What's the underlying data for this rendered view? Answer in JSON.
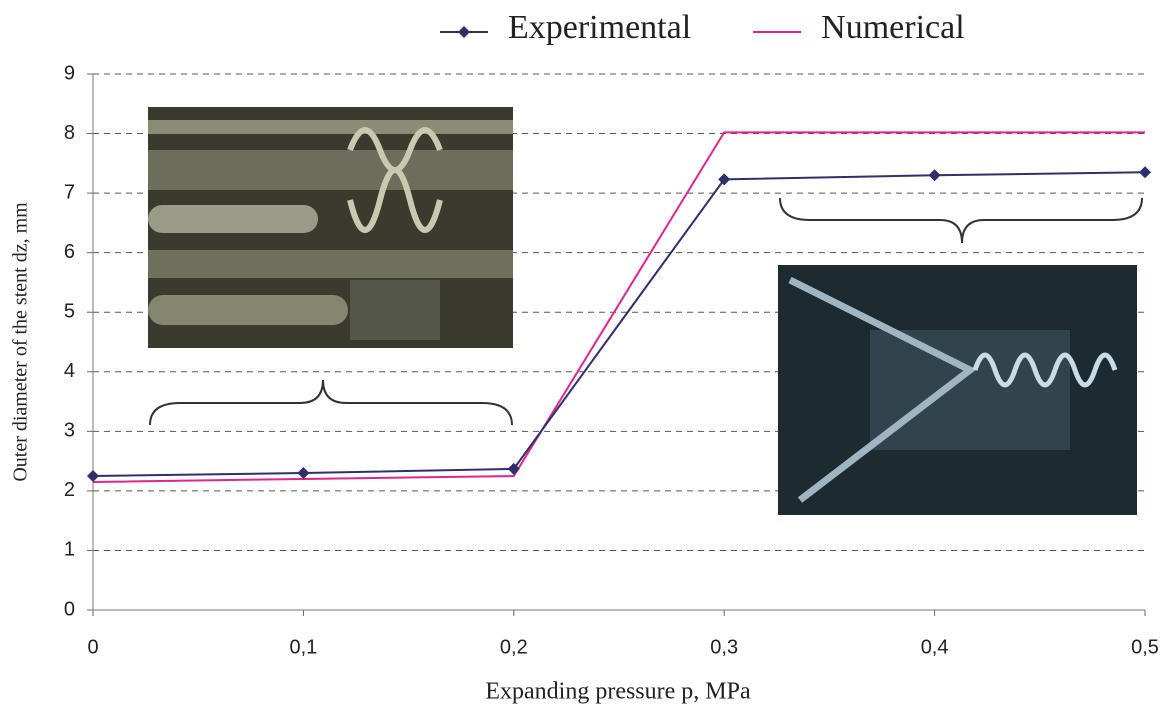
{
  "chart_data": {
    "type": "line",
    "xlabel": "Expanding pressure p, MPa",
    "ylabel": "Outer diameter of the stent dz, mm",
    "x": [
      0,
      0.1,
      0.2,
      0.3,
      0.4,
      0.5
    ],
    "series": [
      {
        "name": "Experimental",
        "color": "#2f2f6b",
        "marker": "diamond",
        "values": [
          2.25,
          2.3,
          2.37,
          7.23,
          7.3,
          7.35
        ]
      },
      {
        "name": "Numerical",
        "color": "#e0258c",
        "marker": "none",
        "values": [
          2.15,
          2.2,
          2.25,
          8.02,
          8.02,
          8.02
        ]
      }
    ],
    "xlim": [
      0,
      0.5
    ],
    "xticks": [
      0,
      {
        "value": 0.1,
        "label": "0,1"
      },
      {
        "value": 0.2,
        "label": "0,2"
      },
      {
        "value": 0.3,
        "label": "0,3"
      },
      {
        "value": 0.4,
        "label": "0,4"
      },
      {
        "value": 0.5,
        "label": "0,5"
      }
    ],
    "ylim": [
      0,
      9
    ],
    "yticks": [
      0,
      1,
      2,
      3,
      4,
      5,
      6,
      7,
      8,
      9
    ],
    "grid": true,
    "legend": "top"
  }
}
